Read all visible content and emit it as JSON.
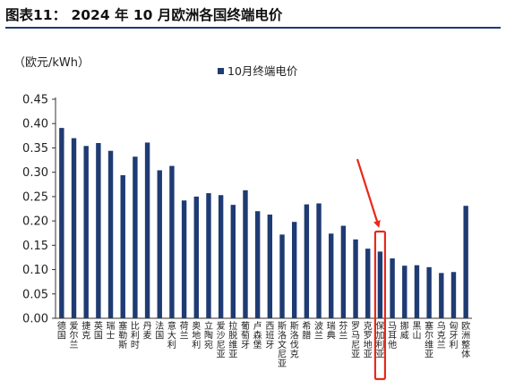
{
  "figure": {
    "title": "图表11： 2024 年 10 月欧洲各国终端电价"
  },
  "chart_data": {
    "type": "bar",
    "unit_label": "（欧元/kWh）",
    "ylim": [
      0,
      0.45
    ],
    "yticks": [
      "0.00",
      "0.05",
      "0.10",
      "0.15",
      "0.20",
      "0.25",
      "0.30",
      "0.35",
      "0.40",
      "0.45"
    ],
    "grid": false,
    "legend_position": "top-right",
    "series": [
      {
        "name": "10月终端电价",
        "values": [
          0.391,
          0.37,
          0.354,
          0.36,
          0.344,
          0.294,
          0.332,
          0.361,
          0.304,
          0.313,
          0.242,
          0.25,
          0.257,
          0.253,
          0.233,
          0.263,
          0.22,
          0.213,
          0.172,
          0.198,
          0.234,
          0.236,
          0.174,
          0.19,
          0.162,
          0.143,
          0.137,
          0.123,
          0.108,
          0.109,
          0.105,
          0.093,
          0.095,
          0.231
        ]
      }
    ],
    "categories": [
      "德国",
      "爱尔兰",
      "捷克",
      "英国",
      "瑞士",
      "塞勒斯",
      "比利时",
      "丹麦",
      "法国",
      "意大利",
      "荷兰",
      "奥地利",
      "立陶宛",
      "爱沙尼亚",
      "拉脱维亚",
      "葡萄牙",
      "卢森堡",
      "西班牙",
      "斯洛文尼亚",
      "斯洛伐克",
      "希腊",
      "波兰",
      "瑞典",
      "芬兰",
      "罗马尼亚",
      "克罗地亚",
      "保加利亚",
      "马耳他",
      "挪威",
      "黑山",
      "塞尔维亚",
      "乌克兰",
      "匈牙利",
      "欧洲整体"
    ],
    "highlight": {
      "category": "保加利亚",
      "color": "#e8291c"
    },
    "colors": {
      "bar": "#1f3b73"
    }
  }
}
